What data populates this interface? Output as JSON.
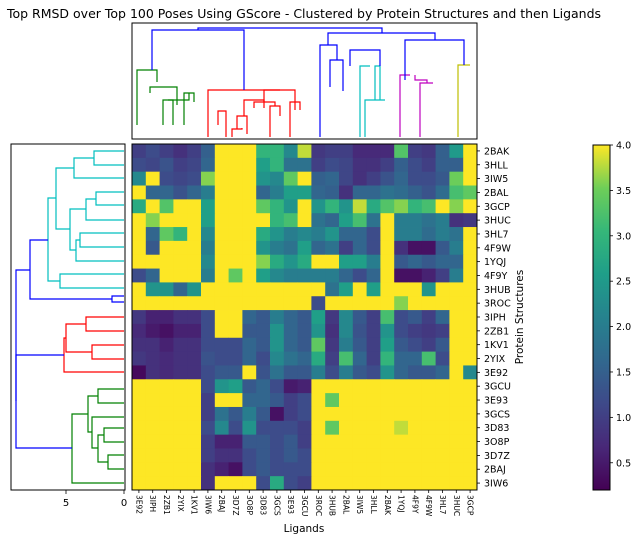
{
  "chart_data": {
    "type": "heatmap",
    "title": "Top RMSD over Top 100 Poses Using GScore - Clustered by Protein Structures and then Ligands",
    "xlabel": "Ligands",
    "ylabel": "Protein Structures",
    "x_categories": [
      "3E92",
      "3IPH",
      "2ZB1",
      "2YIX",
      "1KV1",
      "3IW6",
      "2BAJ",
      "3D7Z",
      "3O8P",
      "3D83",
      "3GCS",
      "3E93",
      "3GCU",
      "3ROC",
      "3HUB",
      "2BAL",
      "3IW5",
      "3HLL",
      "2BAK",
      "1YQJ",
      "4F9Y",
      "4F9W",
      "3HL7",
      "3HUC",
      "3GCP"
    ],
    "y_categories": [
      "2BAK",
      "3HLL",
      "3IW5",
      "2BAL",
      "3GCP",
      "3HUC",
      "3HL7",
      "4F9W",
      "1YQJ",
      "4F9Y",
      "3HUB",
      "3ROC",
      "3IPH",
      "2ZB1",
      "1KV1",
      "2YIX",
      "3E92",
      "3GCU",
      "3E93",
      "3GCS",
      "3D83",
      "3O8P",
      "3D7Z",
      "2BAJ",
      "3IW6"
    ],
    "colorbar": {
      "min": 0.2,
      "max": 4.0,
      "ticks": [
        "0.5",
        "1.0",
        "1.5",
        "2.0",
        "2.5",
        "3.0",
        "3.5",
        "4.0"
      ]
    },
    "left_dendrogram_ticks": [
      "5",
      "0"
    ],
    "matrix": [
      [
        1.0,
        1.2,
        1.0,
        0.8,
        1.0,
        1.5,
        4,
        4,
        4,
        3.0,
        3.0,
        2.2,
        3.8,
        0.9,
        1.0,
        1.0,
        0.7,
        0.7,
        0.7,
        3.3,
        1.0,
        0.9,
        1.5,
        2.5,
        4
      ],
      [
        1.2,
        1.1,
        1.3,
        1.0,
        1.1,
        1.6,
        4,
        4,
        4,
        2.6,
        3.0,
        1.8,
        1.8,
        1.0,
        1.2,
        1.1,
        0.8,
        0.8,
        1.0,
        1.5,
        1.2,
        1.0,
        1.5,
        1.5,
        4
      ],
      [
        2.2,
        4,
        1.2,
        1.1,
        1.2,
        3.6,
        4,
        4,
        4,
        2.4,
        2.2,
        3.4,
        4,
        1.5,
        1.6,
        1.1,
        0.8,
        1.0,
        1.3,
        1.6,
        1.2,
        1.2,
        1.4,
        3.5,
        4
      ],
      [
        4,
        1.6,
        1.6,
        1.3,
        1.6,
        2.0,
        4,
        4,
        4,
        1.6,
        2.0,
        2.6,
        2.6,
        1.6,
        1.5,
        0.8,
        1.6,
        1.6,
        1.8,
        1.7,
        1.5,
        1.3,
        1.7,
        3.2,
        3.4
      ],
      [
        2.8,
        4,
        3.3,
        4,
        4,
        2.6,
        4,
        4,
        4,
        3.4,
        3.0,
        2.4,
        4,
        2.4,
        3.0,
        2.4,
        3.8,
        2.8,
        3.3,
        3.6,
        3.0,
        3.2,
        4,
        3.6,
        4
      ],
      [
        4,
        3.6,
        4,
        4,
        4,
        2.6,
        4,
        4,
        4,
        4,
        3.0,
        3.2,
        4,
        1.8,
        1.6,
        2.6,
        3.2,
        1.8,
        4,
        2.0,
        2.0,
        1.8,
        2.0,
        0.8,
        0.9
      ],
      [
        4,
        1.6,
        3.4,
        3.0,
        4,
        2.2,
        4,
        4,
        4,
        2.8,
        2.4,
        2.0,
        2.2,
        2.0,
        2.4,
        1.6,
        1.6,
        1.2,
        4,
        2.0,
        2.0,
        1.7,
        2.0,
        1.8,
        4
      ],
      [
        4,
        1.4,
        4,
        4,
        4,
        2.0,
        4,
        4,
        4,
        2.4,
        2.0,
        1.8,
        2.6,
        1.6,
        1.8,
        1.0,
        1.6,
        1.2,
        4,
        0.8,
        0.4,
        0.4,
        1.4,
        2.0,
        4
      ],
      [
        4,
        4,
        4,
        4,
        4,
        2.2,
        4,
        4,
        4,
        3.6,
        2.8,
        2.4,
        2.8,
        4,
        4,
        2.6,
        2.6,
        2.0,
        4,
        1.4,
        1.6,
        1.4,
        1.6,
        1.6,
        4
      ],
      [
        1.2,
        1.6,
        4,
        4,
        4,
        2.0,
        4,
        3.4,
        4,
        2.6,
        2.2,
        2.0,
        2.0,
        2.0,
        2.0,
        1.6,
        1.2,
        1.6,
        4,
        0.4,
        0.4,
        0.6,
        1.0,
        2.0,
        4
      ],
      [
        4,
        2.4,
        2.4,
        1.6,
        2.4,
        4,
        4,
        4,
        4,
        4,
        4,
        4,
        4,
        4,
        1.8,
        2.6,
        4,
        2.6,
        4,
        4,
        4,
        2.4,
        4,
        4,
        4
      ],
      [
        4,
        4,
        4,
        4,
        4,
        4,
        4,
        4,
        4,
        4,
        4,
        4,
        4,
        1.2,
        4,
        4,
        4,
        4,
        4,
        3.6,
        4,
        4,
        4,
        4,
        4
      ],
      [
        0.9,
        0.6,
        0.6,
        0.8,
        0.8,
        1.2,
        4,
        4,
        1.6,
        1.4,
        2.0,
        1.6,
        1.4,
        2.6,
        0.9,
        2.2,
        1.4,
        1.0,
        3.2,
        1.2,
        1.4,
        1.0,
        1.6,
        4,
        4
      ],
      [
        0.7,
        0.5,
        0.4,
        0.6,
        0.6,
        1.2,
        4,
        4,
        1.4,
        1.4,
        2.4,
        1.6,
        1.4,
        2.4,
        0.8,
        2.2,
        1.3,
        1.0,
        2.4,
        1.2,
        1.0,
        0.9,
        1.0,
        4,
        4
      ],
      [
        0.8,
        0.8,
        0.6,
        0.8,
        0.8,
        1.2,
        1.2,
        1.2,
        1.6,
        1.4,
        2.4,
        1.6,
        1.4,
        3.4,
        0.9,
        2.0,
        1.4,
        1.0,
        2.6,
        1.4,
        1.2,
        1.0,
        1.4,
        4,
        4
      ],
      [
        0.9,
        0.8,
        0.7,
        0.8,
        0.8,
        1.3,
        1.2,
        1.2,
        1.6,
        1.2,
        2.2,
        1.8,
        1.6,
        2.8,
        1.0,
        3.2,
        1.6,
        1.0,
        3.0,
        1.6,
        1.6,
        3.2,
        1.2,
        4,
        4
      ],
      [
        0.3,
        0.8,
        0.7,
        0.8,
        0.8,
        1.2,
        1.4,
        1.4,
        4,
        1.3,
        1.8,
        1.4,
        1.4,
        2.0,
        1.2,
        2.0,
        1.4,
        1.2,
        2.4,
        1.6,
        1.4,
        1.4,
        1.6,
        4,
        2.2
      ],
      [
        4,
        4,
        4,
        4,
        4,
        1.2,
        2.4,
        2.6,
        1.4,
        1.6,
        1.2,
        0.5,
        0.6,
        4,
        4,
        4,
        4,
        4,
        4,
        4,
        4,
        4,
        4,
        4,
        4
      ],
      [
        4,
        4,
        4,
        4,
        4,
        1.0,
        4,
        4,
        1.6,
        1.6,
        1.4,
        1.0,
        1.2,
        4,
        3.4,
        4,
        4,
        4,
        4,
        4,
        4,
        4,
        4,
        4,
        4
      ],
      [
        4,
        4,
        4,
        4,
        4,
        1.0,
        1.8,
        1.4,
        2.0,
        1.4,
        0.4,
        1.0,
        1.2,
        4,
        4,
        4,
        4,
        4,
        4,
        4,
        4,
        4,
        4,
        4,
        4
      ],
      [
        4,
        4,
        4,
        4,
        4,
        1.2,
        2.2,
        1.2,
        2.4,
        1.2,
        1.2,
        1.2,
        1.0,
        4,
        3.4,
        4,
        4,
        4,
        4,
        3.8,
        4,
        4,
        4,
        4,
        4
      ],
      [
        4,
        4,
        4,
        4,
        4,
        1.0,
        0.6,
        0.6,
        1.4,
        1.4,
        1.2,
        1.4,
        1.0,
        4,
        4,
        4,
        4,
        4,
        4,
        4,
        4,
        4,
        4,
        4,
        4
      ],
      [
        4,
        4,
        4,
        4,
        4,
        1.0,
        0.8,
        0.8,
        1.2,
        1.4,
        1.2,
        1.4,
        1.2,
        4,
        4,
        4,
        4,
        4,
        4,
        4,
        4,
        4,
        4,
        4,
        4
      ],
      [
        4,
        4,
        4,
        4,
        4,
        0.8,
        0.6,
        0.4,
        1.2,
        1.4,
        1.2,
        1.2,
        1.2,
        4,
        4,
        4,
        4,
        4,
        4,
        4,
        4,
        4,
        4,
        4,
        4
      ],
      [
        4,
        4,
        4,
        4,
        4,
        0.8,
        4,
        4,
        4,
        1.2,
        2.8,
        1.2,
        1.0,
        4,
        4,
        4,
        4,
        4,
        4,
        4,
        4,
        4,
        4,
        4,
        4
      ]
    ],
    "dendrogram_colors": {
      "green": "#008000",
      "red": "#ff0000",
      "blue": "#0000ff",
      "cyan": "#00bfbf",
      "magenta": "#bf00bf",
      "olive": "#bfbf00"
    }
  }
}
